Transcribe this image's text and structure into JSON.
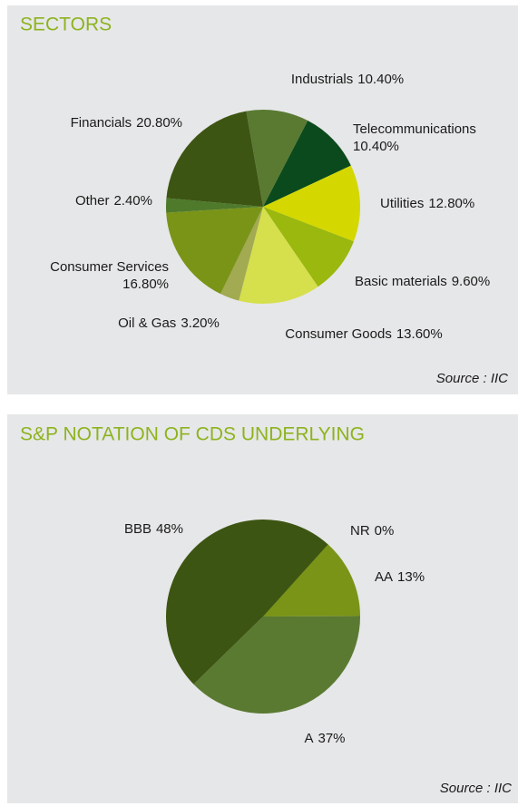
{
  "chart_data": [
    {
      "type": "pie",
      "title": "SECTORS",
      "source": "Source : IIC",
      "categories": [
        "Industrials",
        "Telecommunications",
        "Utilities",
        "Basic materials",
        "Consumer Goods",
        "Oil & Gas",
        "Consumer Services",
        "Other",
        "Financials"
      ],
      "values": [
        10.4,
        10.4,
        12.8,
        9.6,
        13.6,
        3.2,
        16.8,
        2.4,
        20.8
      ],
      "value_labels": [
        "10.40%",
        "10.40%",
        "12.80%",
        "9.60%",
        "13.60%",
        "3.20%",
        "16.80%",
        "2.40%",
        "20.80%"
      ],
      "colors": [
        "#5a7a32",
        "#0b4a1c",
        "#d4d800",
        "#9ab80e",
        "#d6df4c",
        "#a2aa52",
        "#7a9418",
        "#4f7a2c",
        "#3d5512"
      ]
    },
    {
      "type": "pie",
      "title": "S&P NOTATION OF CDS UNDERLYING",
      "source": "Source : IIC",
      "categories": [
        "NR",
        "AA",
        "A",
        "BBB"
      ],
      "values": [
        0,
        13,
        37,
        48
      ],
      "value_labels": [
        "0%",
        "13%",
        "37%",
        "48%"
      ],
      "colors": [
        "#a6b84a",
        "#7a9418",
        "#5a7a32",
        "#3d5512"
      ]
    }
  ]
}
